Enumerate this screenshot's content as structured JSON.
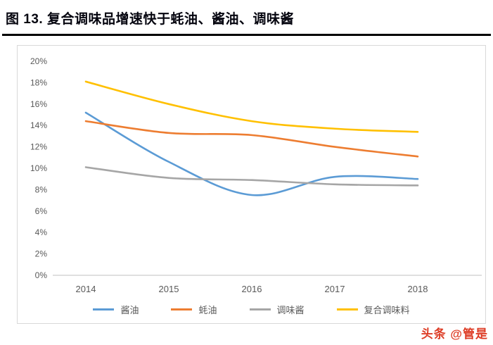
{
  "page": {
    "title": "图 13.  复合调味品增速快于蚝油、酱油、调味酱",
    "watermark": "头条 @管是"
  },
  "chart_data": {
    "type": "line",
    "title": "图 13. 复合调味品增速快于蚝油、酱油、调味酱",
    "categories": [
      "2014",
      "2015",
      "2016",
      "2017",
      "2018"
    ],
    "series": [
      {
        "name": "酱油",
        "color": "#5B9BD5",
        "values": [
          15.2,
          10.6,
          7.5,
          9.2,
          9.0
        ]
      },
      {
        "name": "蚝油",
        "color": "#ED7D31",
        "values": [
          14.4,
          13.3,
          13.1,
          12.0,
          11.1
        ]
      },
      {
        "name": "调味酱",
        "color": "#A6A6A6",
        "values": [
          10.1,
          9.1,
          8.9,
          8.5,
          8.4
        ]
      },
      {
        "name": "复合调味料",
        "color": "#FFC000",
        "values": [
          18.1,
          16.0,
          14.4,
          13.7,
          13.4
        ]
      }
    ],
    "ylim": [
      0,
      20
    ],
    "ytick_step": 2,
    "ytick_labels": [
      "0%",
      "2%",
      "4%",
      "6%",
      "8%",
      "10%",
      "12%",
      "14%",
      "16%",
      "18%",
      "20%"
    ],
    "xlabel": "",
    "ylabel": "",
    "grid": false,
    "legend_position": "bottom",
    "smooth_lines": true
  }
}
